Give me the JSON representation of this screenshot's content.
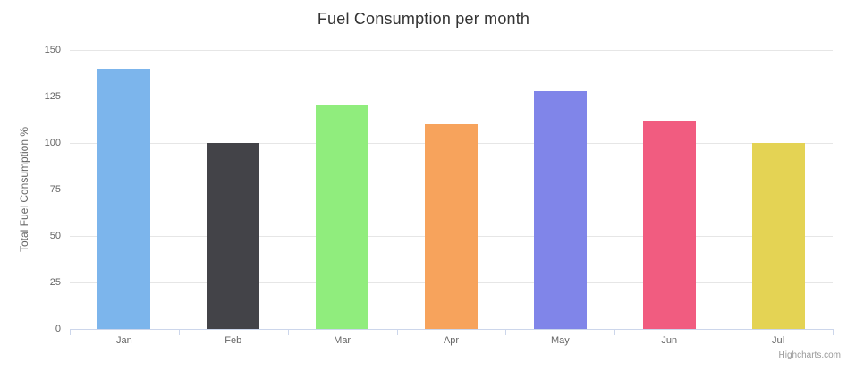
{
  "chart": {
    "credit": "Highcharts.com"
  },
  "chart_data": {
    "type": "bar",
    "title": "Fuel Consumption per month",
    "categories": [
      "Jan",
      "Feb",
      "Mar",
      "Apr",
      "May",
      "Jun",
      "Jul"
    ],
    "values": [
      140,
      100,
      120,
      110,
      128,
      112,
      100
    ],
    "bar_colors": [
      "#7cb5ec",
      "#434348",
      "#90ed7d",
      "#f7a35c",
      "#8085e9",
      "#f15c80",
      "#e4d354"
    ],
    "xlabel": "",
    "ylabel": "Total Fuel Consumption %",
    "ylim": [
      0,
      150
    ],
    "yticks": [
      0,
      25,
      50,
      75,
      100,
      125,
      150
    ],
    "grid": true,
    "legend": "none",
    "title_color": "#333333",
    "label_color": "#666666",
    "grid_color": "#e6e6e6",
    "axis_line_color": "#ccd6eb",
    "credit_color": "#999999",
    "background_color": "#ffffff"
  }
}
